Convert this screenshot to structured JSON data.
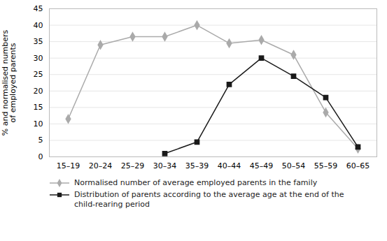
{
  "chart_data": {
    "type": "line",
    "categories": [
      "15–19",
      "20–24",
      "25–29",
      "30–34",
      "35–39",
      "40–44",
      "45–49",
      "50–54",
      "55–59",
      "60–65"
    ],
    "series": [
      {
        "name": "Normalised number of average employed parents in the family",
        "color": "#aaaaaa",
        "marker": "diamond",
        "values": [
          11.5,
          34.0,
          36.5,
          36.5,
          40.0,
          34.5,
          35.5,
          31.0,
          13.5,
          2.5
        ]
      },
      {
        "name": "Distribution of parents according to the average age at the end of the\nchild-rearing period",
        "color": "#1a1a1a",
        "marker": "square",
        "values": [
          null,
          null,
          null,
          1.0,
          4.5,
          22.0,
          30.0,
          24.5,
          18.0,
          3.0
        ]
      }
    ],
    "ylabel": "% and normalised numbers\nof employed parents",
    "ylim": [
      0,
      45
    ],
    "yticks": [
      0,
      5,
      10,
      15,
      20,
      25,
      30,
      35,
      40,
      45
    ],
    "grid": true,
    "legend": "bottom"
  }
}
